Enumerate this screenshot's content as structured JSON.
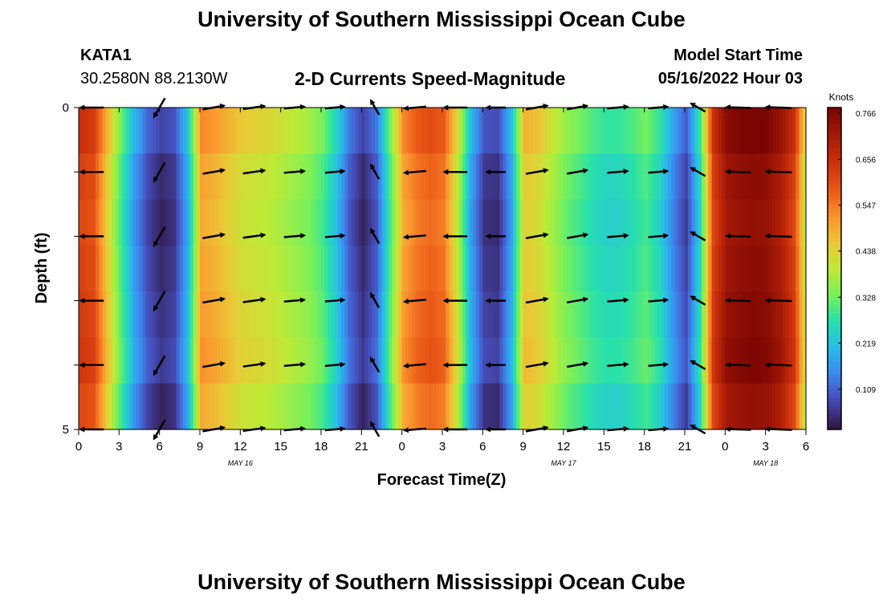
{
  "header": {
    "title": "University of Southern Mississippi Ocean Cube",
    "station": "KATA1",
    "coords": "30.2580N  88.2130W",
    "subtitle": "2-D Currents Speed-Magnitude",
    "model_label": "Model Start Time",
    "model_time": "05/16/2022 Hour 03"
  },
  "footer": {
    "title": "University of Southern Mississippi Ocean Cube"
  },
  "chart_data": {
    "type": "heatmap",
    "title": "2-D Currents Speed-Magnitude",
    "xlabel": "Forecast Time(Z)",
    "ylabel": "Depth (ft)",
    "units": "Knots",
    "x_range_hours": [
      0,
      54
    ],
    "y_range": [
      0,
      5
    ],
    "y_ticks": [
      {
        "v": 0,
        "label": "0"
      },
      {
        "v": 1,
        "label": ""
      },
      {
        "v": 2,
        "label": ""
      },
      {
        "v": 3,
        "label": ""
      },
      {
        "v": 4,
        "label": ""
      },
      {
        "v": 5,
        "label": "5"
      }
    ],
    "x_ticks": [
      {
        "h": 0,
        "label": "0"
      },
      {
        "h": 3,
        "label": "3"
      },
      {
        "h": 6,
        "label": "6"
      },
      {
        "h": 9,
        "label": "9"
      },
      {
        "h": 12,
        "label": "12"
      },
      {
        "h": 15,
        "label": "15"
      },
      {
        "h": 18,
        "label": "18"
      },
      {
        "h": 21,
        "label": "21"
      },
      {
        "h": 24,
        "label": "0"
      },
      {
        "h": 27,
        "label": "3"
      },
      {
        "h": 30,
        "label": "6"
      },
      {
        "h": 33,
        "label": "9"
      },
      {
        "h": 36,
        "label": "12"
      },
      {
        "h": 39,
        "label": "15"
      },
      {
        "h": 42,
        "label": "18"
      },
      {
        "h": 45,
        "label": "21"
      },
      {
        "h": 48,
        "label": "0"
      },
      {
        "h": 51,
        "label": "3"
      },
      {
        "h": 54,
        "label": "6"
      }
    ],
    "date_labels": [
      {
        "h": 12,
        "label": "MAY 16"
      },
      {
        "h": 36,
        "label": "MAY 17"
      },
      {
        "h": 51,
        "label": "MAY 18"
      }
    ],
    "colorbar": {
      "min": 0.0,
      "max": 0.766,
      "ticks": [
        0.109,
        0.219,
        0.328,
        0.438,
        0.547,
        0.656,
        0.766
      ],
      "labels": [
        "0.109",
        "0.219",
        "0.328",
        "0.438",
        "0.547",
        "0.656",
        "0.766"
      ]
    },
    "speed_profile": {
      "hours": [
        0,
        1,
        2,
        3,
        4,
        5,
        6,
        7,
        8,
        9,
        10,
        11,
        12,
        13,
        14,
        15,
        16,
        17,
        18,
        19,
        20,
        21,
        22,
        23,
        24,
        25,
        26,
        27,
        28,
        29,
        30,
        31,
        32,
        33,
        34,
        35,
        36,
        37,
        38,
        39,
        40,
        41,
        42,
        43,
        44,
        45,
        46,
        47,
        48,
        49,
        50,
        51,
        52,
        53,
        54
      ],
      "values": [
        0.62,
        0.6,
        0.45,
        0.3,
        0.17,
        0.08,
        0.04,
        0.06,
        0.2,
        0.5,
        0.48,
        0.45,
        0.42,
        0.41,
        0.4,
        0.38,
        0.36,
        0.34,
        0.3,
        0.22,
        0.1,
        0.04,
        0.1,
        0.3,
        0.5,
        0.55,
        0.57,
        0.55,
        0.4,
        0.18,
        0.06,
        0.05,
        0.18,
        0.45,
        0.43,
        0.38,
        0.33,
        0.3,
        0.27,
        0.25,
        0.25,
        0.27,
        0.3,
        0.25,
        0.15,
        0.07,
        0.25,
        0.62,
        0.72,
        0.74,
        0.75,
        0.74,
        0.7,
        0.62,
        0.35
      ]
    },
    "depth_bias": [
      0.02,
      -0.01,
      -0.02,
      -0.01,
      0.0,
      0.01,
      -0.02
    ],
    "arrow_depths": [
      0,
      1,
      2,
      3,
      4,
      5
    ],
    "arrow_hours": [
      1,
      6,
      10,
      13,
      16,
      19,
      22,
      25,
      28,
      31,
      34,
      37,
      40,
      43,
      46,
      49,
      52
    ],
    "arrow_angles_deg": [
      180,
      240,
      10,
      8,
      5,
      5,
      120,
      185,
      180,
      180,
      10,
      10,
      5,
      5,
      150,
      178,
      178
    ],
    "arrow_lengths": [
      0.85,
      0.8,
      0.8,
      0.8,
      0.75,
      0.7,
      0.6,
      0.8,
      0.85,
      0.7,
      0.8,
      0.75,
      0.75,
      0.7,
      0.6,
      0.9,
      0.95
    ]
  }
}
